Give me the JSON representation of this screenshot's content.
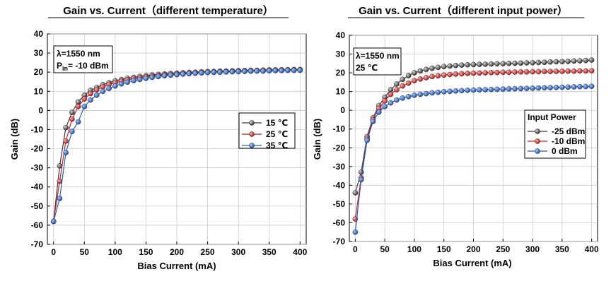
{
  "chart_data": [
    {
      "type": "line",
      "title": "Gain vs. Current（different temperature）",
      "xlabel": "Bias Current (mA)",
      "ylabel": "Gain (dB)",
      "xlim": [
        -10,
        410
      ],
      "ylim": [
        -70,
        40
      ],
      "xticks": [
        0,
        50,
        100,
        150,
        200,
        250,
        300,
        350,
        400
      ],
      "yticks": [
        -70,
        -60,
        -50,
        -40,
        -30,
        -20,
        -10,
        0,
        10,
        20,
        30,
        40
      ],
      "grid": true,
      "annotation": {
        "line1": "λ=1550 nm",
        "line2_main": "P",
        "line2_sub": "in",
        "line2_rest": "= -10 dBm"
      },
      "legend": {
        "title": "",
        "placement": "center-right"
      },
      "x": [
        0,
        10,
        20,
        30,
        40,
        50,
        60,
        70,
        80,
        90,
        100,
        110,
        120,
        130,
        140,
        150,
        160,
        170,
        180,
        190,
        200,
        210,
        220,
        230,
        240,
        250,
        260,
        270,
        280,
        290,
        300,
        310,
        320,
        330,
        340,
        350,
        360,
        370,
        380,
        390,
        400
      ],
      "series": [
        {
          "name": "15 ℃",
          "color": "#3a3a3a",
          "values": [
            -58,
            -29,
            -9,
            -1,
            4.5,
            8,
            10.5,
            12,
            13.5,
            14.5,
            15.5,
            16.2,
            16.8,
            17.3,
            17.8,
            18.2,
            18.5,
            18.8,
            19.1,
            19.3,
            19.5,
            19.7,
            19.9,
            20,
            20.2,
            20.3,
            20.4,
            20.5,
            20.6,
            20.7,
            20.8,
            20.9,
            21,
            21,
            21.1,
            21.2,
            21.2,
            21.3,
            21.3,
            21.4,
            21.4
          ]
        },
        {
          "name": "25 ℃",
          "color": "#cc1f1f",
          "values": [
            -58,
            -37,
            -16,
            -4.5,
            2,
            6,
            8.8,
            10.8,
            12.3,
            13.5,
            14.5,
            15.3,
            16,
            16.6,
            17.1,
            17.6,
            18,
            18.3,
            18.6,
            18.9,
            19.1,
            19.3,
            19.5,
            19.7,
            19.8,
            20,
            20.1,
            20.2,
            20.3,
            20.4,
            20.5,
            20.6,
            20.7,
            20.8,
            20.8,
            20.9,
            21,
            21,
            21.1,
            21.1,
            21.2
          ]
        },
        {
          "name": "35 ℃",
          "color": "#1f5fbf",
          "values": [
            -58,
            -46,
            -22,
            -11,
            -6,
            2,
            5.5,
            8,
            10,
            11.5,
            12.8,
            13.9,
            14.8,
            15.6,
            16.2,
            16.8,
            17.3,
            17.7,
            18.1,
            18.4,
            18.7,
            19,
            19.2,
            19.4,
            19.6,
            19.8,
            19.9,
            20,
            20.1,
            20.2,
            20.3,
            20.4,
            20.5,
            20.6,
            20.6,
            20.7,
            20.8,
            20.8,
            20.9,
            20.9,
            21
          ]
        }
      ]
    },
    {
      "type": "line",
      "title": "Gain vs. Current（different input power）",
      "xlabel": "Bias Current (mA)",
      "ylabel": "Gain (dB)",
      "xlim": [
        -10,
        410
      ],
      "ylim": [
        -70,
        40
      ],
      "xticks": [
        0,
        50,
        100,
        150,
        200,
        250,
        300,
        350,
        400
      ],
      "yticks": [
        -70,
        -60,
        -50,
        -40,
        -30,
        -20,
        -10,
        0,
        10,
        20,
        30,
        40
      ],
      "grid": true,
      "annotation": {
        "line1": "λ=1550 nm",
        "line2": "25 ℃"
      },
      "legend": {
        "title": "Input Power",
        "placement": "center-right"
      },
      "x": [
        0,
        10,
        20,
        30,
        40,
        50,
        60,
        70,
        80,
        90,
        100,
        110,
        120,
        130,
        140,
        150,
        160,
        170,
        180,
        190,
        200,
        210,
        220,
        230,
        240,
        250,
        260,
        270,
        280,
        290,
        300,
        310,
        320,
        330,
        340,
        350,
        360,
        370,
        380,
        390,
        400
      ],
      "series": [
        {
          "name": "-25 dBm",
          "color": "#3a3a3a",
          "values": [
            -44,
            -33,
            -14,
            -4,
            2.5,
            7,
            11,
            14,
            16.5,
            18.5,
            20,
            21,
            21.8,
            22.4,
            22.9,
            23.3,
            23.6,
            23.9,
            24.1,
            24.3,
            24.4,
            24.5,
            24.6,
            24.7,
            24.8,
            24.9,
            25,
            25.1,
            25.2,
            25.3,
            25.4,
            25.5,
            25.6,
            25.8,
            25.9,
            26,
            26.1,
            26.3,
            26.4,
            26.6,
            26.8
          ]
        },
        {
          "name": "-10 dBm",
          "color": "#cc1f1f",
          "values": [
            -58,
            -36,
            -15,
            -5,
            1,
            5,
            8.5,
            11,
            13,
            14.5,
            15.8,
            16.7,
            17.4,
            18,
            18.4,
            18.8,
            19.1,
            19.3,
            19.5,
            19.7,
            19.8,
            19.9,
            20,
            20.1,
            20.2,
            20.3,
            20.3,
            20.4,
            20.5,
            20.5,
            20.6,
            20.6,
            20.7,
            20.7,
            20.8,
            20.8,
            20.9,
            20.9,
            21,
            21,
            21.1
          ]
        },
        {
          "name": "0 dBm",
          "color": "#1f5fbf",
          "values": [
            -65,
            -37,
            -16,
            -6,
            -1,
            2,
            4,
            5.5,
            6.5,
            7.3,
            8,
            8.5,
            8.9,
            9.3,
            9.6,
            9.9,
            10.1,
            10.3,
            10.5,
            10.7,
            10.8,
            10.9,
            11,
            11.1,
            11.2,
            11.3,
            11.4,
            11.5,
            11.6,
            11.7,
            11.8,
            11.9,
            12,
            12.1,
            12.2,
            12.3,
            12.4,
            12.5,
            12.6,
            12.7,
            12.8
          ]
        }
      ]
    }
  ]
}
